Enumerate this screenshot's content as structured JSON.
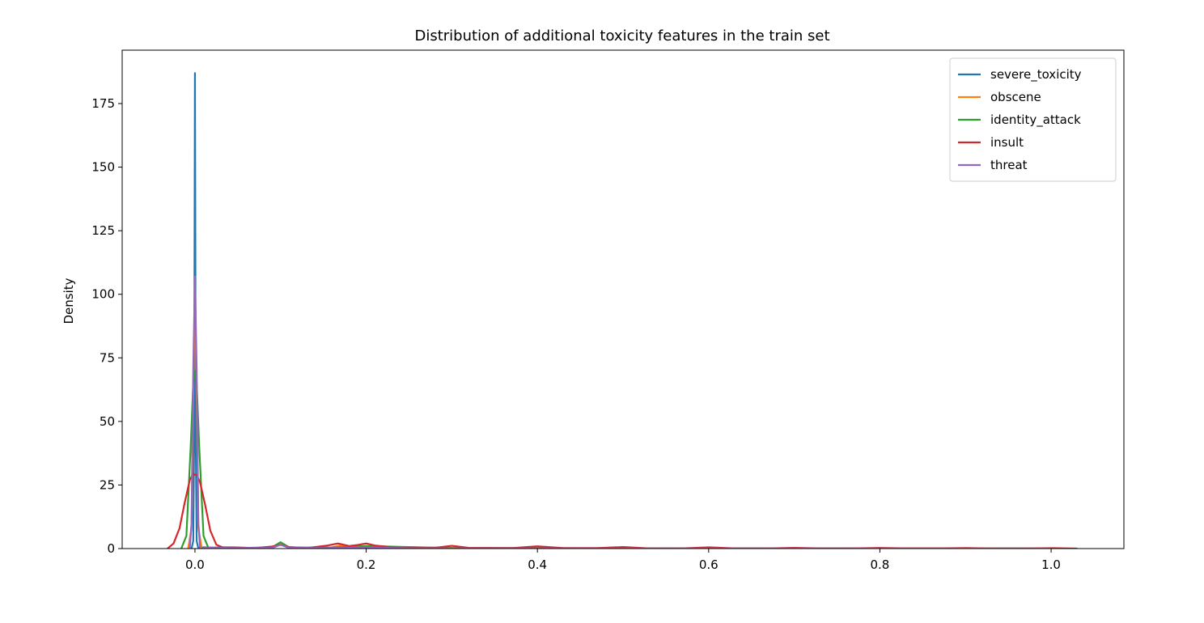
{
  "chart_data": {
    "type": "line",
    "title": "Distribution of additional toxicity features in the train set",
    "xlabel": "",
    "ylabel": "Density",
    "xlim": [
      -0.085,
      1.085
    ],
    "ylim": [
      0,
      196
    ],
    "xticks": [
      {
        "value": 0.0,
        "label": "0.0"
      },
      {
        "value": 0.2,
        "label": "0.2"
      },
      {
        "value": 0.4,
        "label": "0.4"
      },
      {
        "value": 0.6,
        "label": "0.6"
      },
      {
        "value": 0.8,
        "label": "0.8"
      },
      {
        "value": 1.0,
        "label": "1.0"
      }
    ],
    "yticks": [
      {
        "value": 0,
        "label": "0"
      },
      {
        "value": 25,
        "label": "25"
      },
      {
        "value": 50,
        "label": "50"
      },
      {
        "value": 75,
        "label": "75"
      },
      {
        "value": 100,
        "label": "100"
      },
      {
        "value": 125,
        "label": "125"
      },
      {
        "value": 150,
        "label": "150"
      },
      {
        "value": 175,
        "label": "175"
      }
    ],
    "grid": false,
    "legend_position": "top-right",
    "series": [
      {
        "name": "severe_toxicity",
        "color": "#1f77b4",
        "x": [
          -0.004,
          -0.002,
          -0.001,
          0.0,
          0.001,
          0.002,
          0.004,
          0.01,
          0.05,
          0.09,
          0.1,
          0.11,
          0.15,
          0.2,
          0.25,
          1.0
        ],
        "y": [
          0,
          3,
          40,
          187,
          40,
          3,
          0,
          0.5,
          0.3,
          0.2,
          1.6,
          0.2,
          0.2,
          0.5,
          0.1,
          0
        ]
      },
      {
        "name": "obscene",
        "color": "#ff7f0e",
        "x": [
          -0.008,
          -0.004,
          -0.002,
          0.0,
          0.002,
          0.004,
          0.008,
          0.015,
          0.05,
          0.09,
          0.1,
          0.11,
          0.16,
          0.17,
          0.18,
          0.2,
          0.3,
          0.5,
          1.0
        ],
        "y": [
          0,
          8,
          60,
          100,
          60,
          8,
          0,
          0.5,
          0.3,
          0.3,
          1.8,
          0.3,
          0.5,
          1.2,
          0.5,
          0.8,
          0.3,
          0.1,
          0
        ]
      },
      {
        "name": "identity_attack",
        "color": "#2ca02c",
        "x": [
          -0.016,
          -0.01,
          -0.005,
          -0.002,
          0.0,
          0.002,
          0.005,
          0.01,
          0.016,
          0.03,
          0.06,
          0.09,
          0.1,
          0.11,
          0.15,
          0.2,
          0.3,
          1.0
        ],
        "y": [
          0,
          5,
          40,
          65,
          70,
          65,
          40,
          5,
          0,
          0.5,
          0.3,
          0.5,
          2.5,
          0.5,
          0.3,
          1.0,
          0.2,
          0
        ]
      },
      {
        "name": "insult",
        "color": "#d62728",
        "x": [
          -0.032,
          -0.025,
          -0.018,
          -0.012,
          -0.006,
          -0.002,
          0.0,
          0.002,
          0.006,
          0.012,
          0.018,
          0.025,
          0.032,
          0.045,
          0.07,
          0.09,
          0.1,
          0.11,
          0.13,
          0.155,
          0.167,
          0.18,
          0.19,
          0.2,
          0.21,
          0.24,
          0.28,
          0.3,
          0.32,
          0.37,
          0.4,
          0.43,
          0.47,
          0.5,
          0.53,
          0.57,
          0.6,
          0.63,
          0.67,
          0.7,
          0.73,
          0.77,
          0.8,
          0.83,
          0.87,
          0.9,
          0.93,
          0.97,
          1.0,
          1.03
        ],
        "y": [
          0,
          2,
          8,
          18,
          27,
          29.5,
          29,
          29,
          26,
          17,
          7,
          1.5,
          0.5,
          0.5,
          0.2,
          0.8,
          1.5,
          0.6,
          0.2,
          1.2,
          2.0,
          1.0,
          1.4,
          2.0,
          1.2,
          0.2,
          0.3,
          1.1,
          0.3,
          0.2,
          0.9,
          0.2,
          0.2,
          0.6,
          0.1,
          0.1,
          0.5,
          0.1,
          0.1,
          0.3,
          0.1,
          0.1,
          0.25,
          0.1,
          0.1,
          0.2,
          0.05,
          0.05,
          0.15,
          0
        ]
      },
      {
        "name": "threat",
        "color": "#9467bd",
        "x": [
          -0.006,
          -0.004,
          -0.002,
          0.0,
          0.002,
          0.004,
          0.006,
          0.015,
          0.05,
          0.09,
          0.1,
          0.11,
          0.15,
          0.2,
          0.25,
          1.0
        ],
        "y": [
          0,
          10,
          70,
          107,
          70,
          10,
          0,
          0.3,
          0.2,
          0.3,
          1.5,
          0.3,
          0.2,
          0.5,
          0.1,
          0
        ]
      }
    ]
  }
}
